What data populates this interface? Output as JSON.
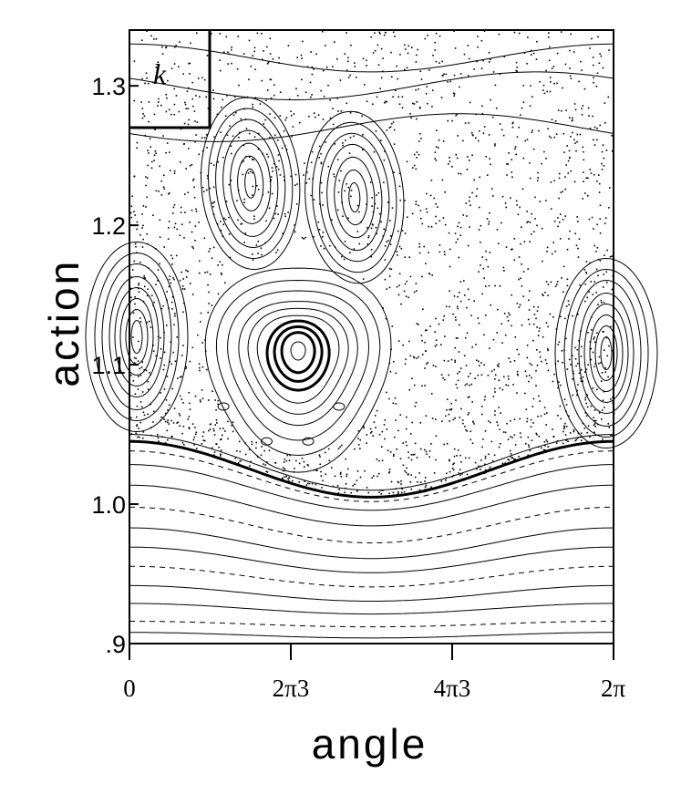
{
  "chart_data": {
    "type": "scatter",
    "panel_label": "k",
    "xlabel": "angle",
    "ylabel": "action",
    "xlim": [
      0,
      6.2832
    ],
    "ylim": [
      0.9,
      1.34
    ],
    "x_ticks": [
      {
        "value": 0,
        "label": "0"
      },
      {
        "value": 2.0944,
        "label": "2π3"
      },
      {
        "value": 4.1888,
        "label": "4π3"
      },
      {
        "value": 6.2832,
        "label": "2π"
      }
    ],
    "y_ticks": [
      {
        "value": 0.9,
        "label": ".9"
      },
      {
        "value": 1.0,
        "label": "1.0"
      },
      {
        "value": 1.1,
        "label": "1.1"
      },
      {
        "value": 1.2,
        "label": "1.2"
      },
      {
        "value": 1.3,
        "label": "1.3"
      }
    ],
    "features": {
      "central_island_center": [
        2.19,
        1.11
      ],
      "upper_islands_centers": [
        [
          1.57,
          1.23
        ],
        [
          2.92,
          1.22
        ]
      ],
      "edge_island_center": [
        0.08,
        1.12
      ],
      "separatrix_min_action": 1.005,
      "separatrix_max_action": 1.045,
      "small_satellite_islands": [
        [
          1.78,
          1.045
        ],
        [
          2.32,
          1.045
        ],
        [
          1.22,
          1.07
        ],
        [
          2.72,
          1.07
        ]
      ]
    }
  }
}
